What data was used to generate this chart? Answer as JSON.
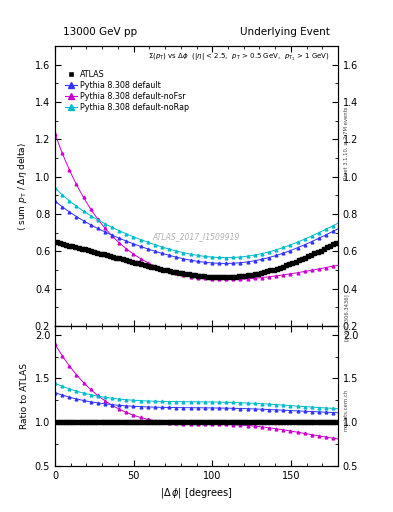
{
  "title_left": "13000 GeV pp",
  "title_right": "Underlying Event",
  "annotation": "#Sigma(p_{T}) vs #Delta#phi  (|#eta| < 2.5,  p_{T} > 0.5 GeV,  p_{T1} > 1 GeV)",
  "watermark": "ATLAS_2017_I1509919",
  "ylabel_main": "#langle sum p_{T} / #Delta#eta delta#rangle",
  "ylabel_ratio": "Ratio to ATLAS",
  "xlabel": "|#Delta #phi| [degrees]",
  "right_label_main": "Rivet 3.1.10, #geq 2.7M events",
  "right_label_ratio": "[arXiv:1306.3436]",
  "right_label_url": "mcplots.cern.ch",
  "ylim_main": [
    0.2,
    1.7
  ],
  "ylim_ratio": [
    0.5,
    2.1
  ],
  "yticks_main": [
    0.2,
    0.4,
    0.6,
    0.8,
    1.0,
    1.2,
    1.4,
    1.6
  ],
  "yticks_ratio": [
    0.5,
    1.0,
    1.5,
    2.0
  ],
  "xlim": [
    0,
    180
  ],
  "xticks": [
    0,
    50,
    100,
    150
  ],
  "colors": {
    "atlas": "#000000",
    "default": "#3333ff",
    "noFsr": "#cc00cc",
    "noRap": "#00bbcc"
  },
  "background_color": "#ffffff"
}
